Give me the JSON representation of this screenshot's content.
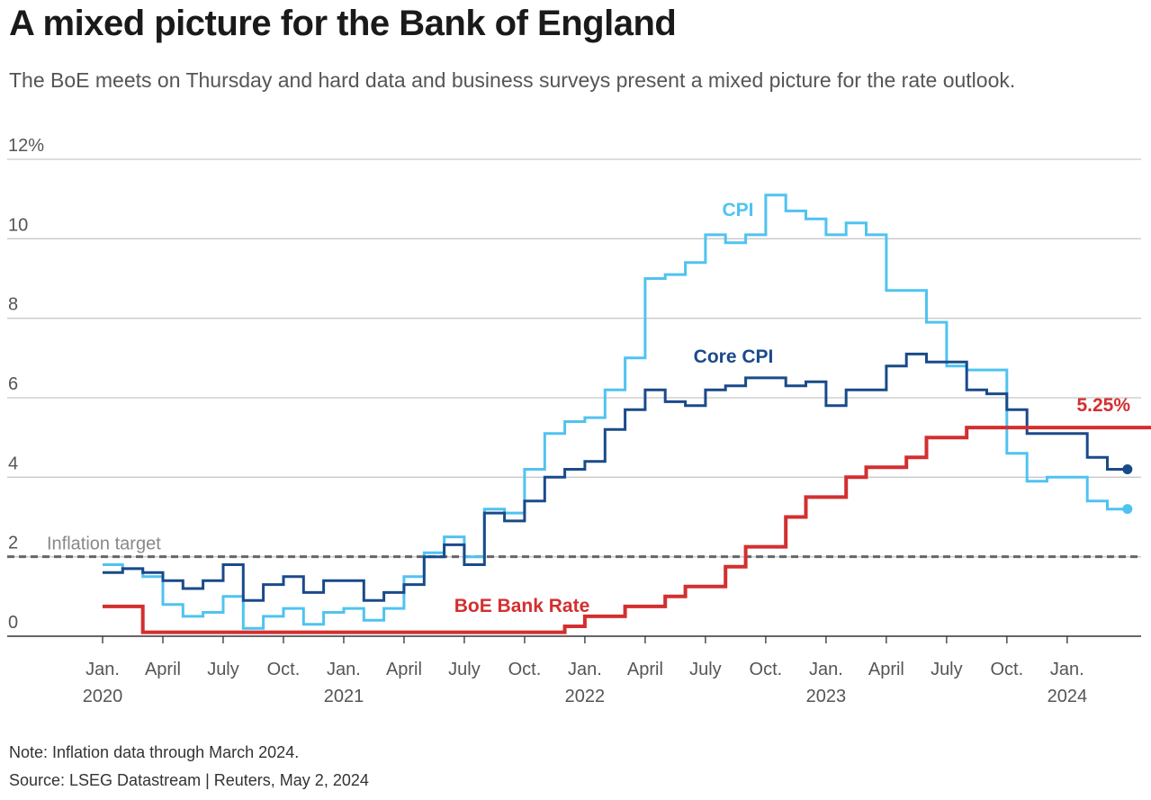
{
  "title": "A mixed picture for the Bank of England",
  "subtitle": "The BoE meets on Thursday and hard data and business surveys present a mixed picture for the rate outlook.",
  "note": "Note: Inflation data through March 2024.",
  "source": "Source: LSEG Datastream | Reuters, May 2, 2024",
  "chart_data": {
    "type": "line",
    "step": true,
    "ylim": [
      0,
      12
    ],
    "y_ticks": [
      {
        "value": 12,
        "label": "12%"
      },
      {
        "value": 10,
        "label": "10"
      },
      {
        "value": 8,
        "label": "8"
      },
      {
        "value": 6,
        "label": "6"
      },
      {
        "value": 4,
        "label": "4"
      },
      {
        "value": 2,
        "label": "2"
      },
      {
        "value": 0,
        "label": "0"
      }
    ],
    "x_range": [
      "2020-01",
      "2024-05"
    ],
    "x_ticks": [
      {
        "date": "2020-01",
        "label": "Jan.",
        "year": "2020"
      },
      {
        "date": "2020-04",
        "label": "April",
        "year": ""
      },
      {
        "date": "2020-07",
        "label": "July",
        "year": ""
      },
      {
        "date": "2020-10",
        "label": "Oct.",
        "year": ""
      },
      {
        "date": "2021-01",
        "label": "Jan.",
        "year": "2021"
      },
      {
        "date": "2021-04",
        "label": "April",
        "year": ""
      },
      {
        "date": "2021-07",
        "label": "July",
        "year": ""
      },
      {
        "date": "2021-10",
        "label": "Oct.",
        "year": ""
      },
      {
        "date": "2022-01",
        "label": "Jan.",
        "year": "2022"
      },
      {
        "date": "2022-04",
        "label": "April",
        "year": ""
      },
      {
        "date": "2022-07",
        "label": "July",
        "year": ""
      },
      {
        "date": "2022-10",
        "label": "Oct.",
        "year": ""
      },
      {
        "date": "2023-01",
        "label": "Jan.",
        "year": "2023"
      },
      {
        "date": "2023-04",
        "label": "April",
        "year": ""
      },
      {
        "date": "2023-07",
        "label": "July",
        "year": ""
      },
      {
        "date": "2023-10",
        "label": "Oct.",
        "year": ""
      },
      {
        "date": "2024-01",
        "label": "Jan.",
        "year": "2024"
      }
    ],
    "target": {
      "value": 2,
      "label": "Inflation target"
    },
    "series": [
      {
        "name": "CPI",
        "color": "#4fc3f0",
        "start": "2020-01",
        "values": [
          1.8,
          1.7,
          1.5,
          0.8,
          0.5,
          0.6,
          1.0,
          0.2,
          0.5,
          0.7,
          0.3,
          0.6,
          0.7,
          0.4,
          0.7,
          1.5,
          2.1,
          2.5,
          2.0,
          3.2,
          3.1,
          4.2,
          5.1,
          5.4,
          5.5,
          6.2,
          7.0,
          9.0,
          9.1,
          9.4,
          10.1,
          9.9,
          10.1,
          11.1,
          10.7,
          10.5,
          10.1,
          10.4,
          10.1,
          8.7,
          8.7,
          7.9,
          6.8,
          6.7,
          6.7,
          4.6,
          3.9,
          4.0,
          4.0,
          3.4,
          3.2
        ]
      },
      {
        "name": "Core CPI",
        "color": "#1a4a8a",
        "start": "2020-01",
        "values": [
          1.6,
          1.7,
          1.6,
          1.4,
          1.2,
          1.4,
          1.8,
          0.9,
          1.3,
          1.5,
          1.1,
          1.4,
          1.4,
          0.9,
          1.1,
          1.3,
          2.0,
          2.3,
          1.8,
          3.1,
          2.9,
          3.4,
          4.0,
          4.2,
          4.4,
          5.2,
          5.7,
          6.2,
          5.9,
          5.8,
          6.2,
          6.3,
          6.5,
          6.5,
          6.3,
          6.4,
          5.8,
          6.2,
          6.2,
          6.8,
          7.1,
          6.9,
          6.9,
          6.2,
          6.1,
          5.7,
          5.1,
          5.1,
          5.1,
          4.5,
          4.2
        ]
      },
      {
        "name": "BoE Bank Rate",
        "color": "#d32f2f",
        "start": "2020-01",
        "values": [
          0.75,
          0.75,
          0.1,
          0.1,
          0.1,
          0.1,
          0.1,
          0.1,
          0.1,
          0.1,
          0.1,
          0.1,
          0.1,
          0.1,
          0.1,
          0.1,
          0.1,
          0.1,
          0.1,
          0.1,
          0.1,
          0.1,
          0.1,
          0.25,
          0.5,
          0.5,
          0.75,
          0.75,
          1.0,
          1.25,
          1.25,
          1.75,
          2.25,
          2.25,
          3.0,
          3.5,
          3.5,
          4.0,
          4.25,
          4.25,
          4.5,
          5.0,
          5.0,
          5.25,
          5.25,
          5.25,
          5.25,
          5.25,
          5.25,
          5.25,
          5.25,
          5.25,
          5.25
        ],
        "end_label": "5.25%"
      }
    ]
  }
}
